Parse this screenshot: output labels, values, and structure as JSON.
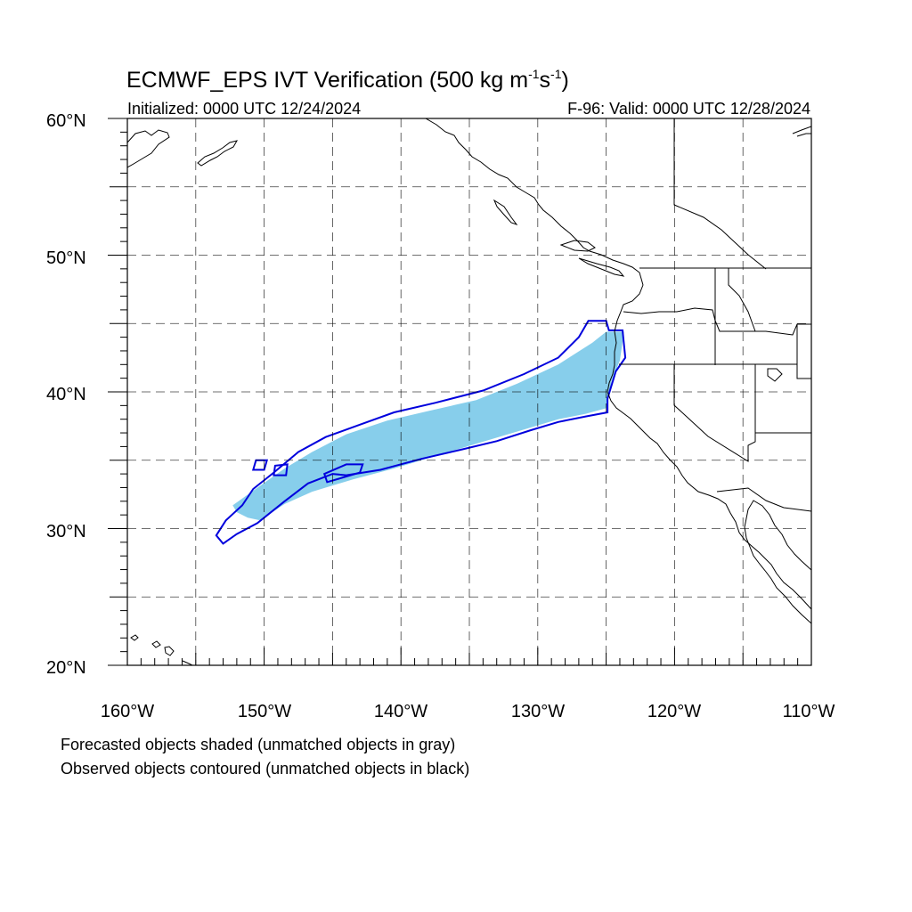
{
  "title": {
    "prefix": "ECMWF_EPS IVT Verification (500 kg m",
    "exp1": "-1",
    "mid": "s",
    "exp2": "-1",
    "suffix": ")"
  },
  "initialized": "Initialized: 0000 UTC 12/24/2024",
  "valid": "F-96: Valid: 0000 UTC 12/28/2024",
  "lat_labels": [
    "60°N",
    "50°N",
    "40°N",
    "30°N",
    "20°N"
  ],
  "lon_labels": [
    "160°W",
    "150°W",
    "140°W",
    "130°W",
    "120°W",
    "110°W"
  ],
  "notes": [
    "Forecasted objects shaded (unmatched objects in gray)",
    "Observed objects contoured (unmatched objects in black)"
  ],
  "colors": {
    "forecast_fill": "#87ceeb",
    "observed_contour": "#0000dd",
    "grid": "#000000",
    "coast": "#000000"
  },
  "map_extent": {
    "lon": [
      -160,
      -110
    ],
    "lat": [
      20,
      60
    ]
  },
  "forecast_object": {
    "matched": true,
    "polygon_lonlat": [
      [
        -152.3,
        31.7
      ],
      [
        -150.2,
        33.2
      ],
      [
        -148.5,
        34.4
      ],
      [
        -146.5,
        35.6
      ],
      [
        -144.0,
        36.9
      ],
      [
        -141.0,
        37.9
      ],
      [
        -138.0,
        38.6
      ],
      [
        -134.5,
        39.4
      ],
      [
        -131.5,
        40.6
      ],
      [
        -128.5,
        42.0
      ],
      [
        -126.0,
        43.6
      ],
      [
        -125.0,
        44.4
      ],
      [
        -123.7,
        44.4
      ],
      [
        -124.0,
        42.3
      ],
      [
        -124.6,
        40.8
      ],
      [
        -125.0,
        38.8
      ],
      [
        -126.5,
        38.4
      ],
      [
        -128.5,
        38.0
      ],
      [
        -131.5,
        37.1
      ],
      [
        -134.5,
        36.2
      ],
      [
        -137.5,
        35.3
      ],
      [
        -140.5,
        34.4
      ],
      [
        -143.5,
        33.6
      ],
      [
        -146.5,
        32.7
      ],
      [
        -148.5,
        31.8
      ],
      [
        -150.3,
        30.6
      ],
      [
        -151.2,
        30.8
      ],
      [
        -152.0,
        31.2
      ]
    ]
  },
  "observed_objects": [
    {
      "matched": true,
      "polygon_lonlat": [
        [
          -153.5,
          29.5
        ],
        [
          -152.8,
          30.6
        ],
        [
          -151.6,
          31.7
        ],
        [
          -150.8,
          32.9
        ],
        [
          -149.3,
          34.1
        ],
        [
          -147.5,
          35.6
        ],
        [
          -145.5,
          36.7
        ],
        [
          -143.0,
          37.6
        ],
        [
          -140.5,
          38.5
        ],
        [
          -137.5,
          39.2
        ],
        [
          -134.0,
          40.1
        ],
        [
          -131.0,
          41.3
        ],
        [
          -128.5,
          42.5
        ],
        [
          -127.0,
          44.0
        ],
        [
          -126.3,
          45.2
        ],
        [
          -125.0,
          45.2
        ],
        [
          -124.8,
          44.5
        ],
        [
          -123.8,
          44.5
        ],
        [
          -123.6,
          42.5
        ],
        [
          -124.3,
          41.5
        ],
        [
          -124.9,
          39.5
        ],
        [
          -124.9,
          38.5
        ],
        [
          -126.5,
          38.2
        ],
        [
          -128.5,
          37.8
        ],
        [
          -130.5,
          37.2
        ],
        [
          -133.0,
          36.4
        ],
        [
          -135.5,
          35.8
        ],
        [
          -138.5,
          35.1
        ],
        [
          -141.5,
          34.3
        ],
        [
          -144.0,
          33.9
        ],
        [
          -145.0,
          34.0
        ],
        [
          -146.8,
          33.3
        ],
        [
          -148.5,
          32.0
        ],
        [
          -150.5,
          30.4
        ],
        [
          -152.0,
          29.6
        ],
        [
          -153.0,
          28.9
        ]
      ]
    },
    {
      "matched": true,
      "polygon_lonlat": [
        [
          -150.6,
          35.0
        ],
        [
          -149.8,
          35.0
        ],
        [
          -150.0,
          34.3
        ],
        [
          -150.8,
          34.3
        ]
      ]
    },
    {
      "matched": true,
      "polygon_lonlat": [
        [
          -149.2,
          34.6
        ],
        [
          -148.3,
          34.7
        ],
        [
          -148.4,
          33.9
        ],
        [
          -149.3,
          33.9
        ]
      ]
    },
    {
      "matched": true,
      "polygon_lonlat": [
        [
          -145.4,
          33.4
        ],
        [
          -143.0,
          34.1
        ],
        [
          -142.8,
          34.7
        ],
        [
          -144.0,
          34.7
        ],
        [
          -145.6,
          34.0
        ]
      ]
    }
  ]
}
